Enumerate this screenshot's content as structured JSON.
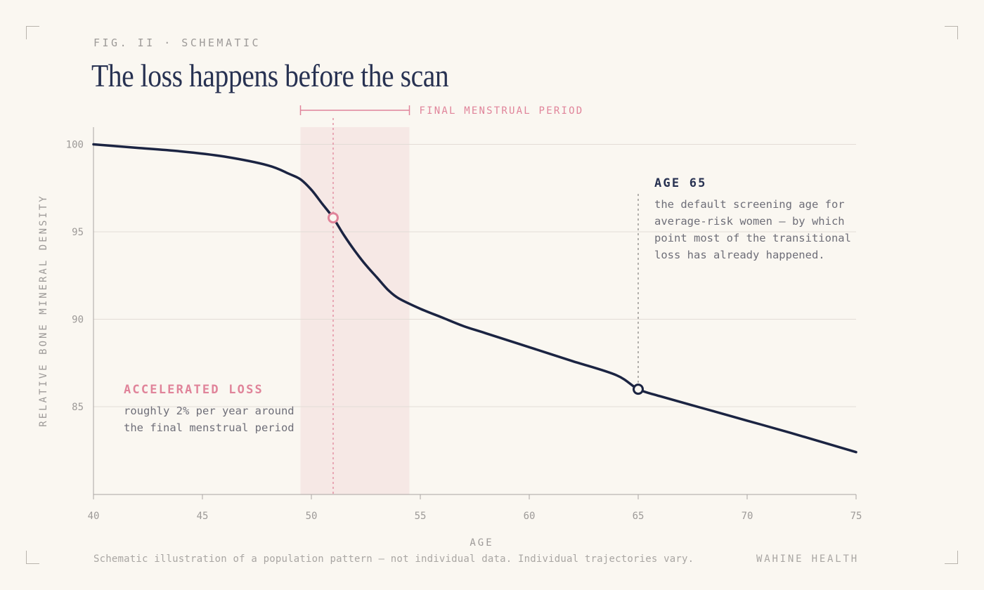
{
  "kicker": "FIG. II · SCHEMATIC",
  "title": "The loss happens before the scan",
  "footer": {
    "note": "Schematic illustration of a population pattern — not individual data. Individual trajectories vary.",
    "brand": "WAHINE HEALTH"
  },
  "colors": {
    "background": "#faf7f1",
    "line": "#1b2442",
    "accent_pink": "#e0849a",
    "band": "#f6e8e5",
    "muted": "#9d9a98"
  },
  "chart_data": {
    "type": "line",
    "xlabel": "AGE",
    "ylabel": "RELATIVE BONE MINERAL DENSITY",
    "xlim": [
      40,
      75
    ],
    "ylim": [
      80,
      101
    ],
    "x_ticks": [
      "40",
      "45",
      "50",
      "55",
      "60",
      "65",
      "70",
      "75"
    ],
    "y_ticks": [
      "100",
      "95",
      "90",
      "85"
    ],
    "grid": "horizontal",
    "series": [
      {
        "x": [
          40,
          42,
          44,
          46,
          48,
          49,
          49.5,
          50,
          50.5,
          51,
          51.5,
          52,
          52.5,
          53,
          53.5,
          54,
          55,
          56,
          57,
          58,
          60,
          62,
          64,
          65,
          66,
          68,
          70,
          72,
          75
        ],
        "y": [
          100,
          99.8,
          99.6,
          99.3,
          98.8,
          98.3,
          98.0,
          97.4,
          96.6,
          95.8,
          94.8,
          93.9,
          93.1,
          92.4,
          91.7,
          91.2,
          90.6,
          90.1,
          89.6,
          89.2,
          88.4,
          87.6,
          86.8,
          86.0,
          85.6,
          84.9,
          84.2,
          83.5,
          82.4
        ]
      }
    ],
    "band": {
      "x_start": 49.5,
      "x_end": 54.5,
      "label": "FINAL MENSTRUAL PERIOD"
    },
    "markers": [
      {
        "x": 51,
        "y": 95.8,
        "style": "pink-ring"
      },
      {
        "x": 65,
        "y": 86,
        "style": "navy-ring"
      }
    ],
    "annotations": [
      {
        "id": "accelerated",
        "title": "ACCELERATED LOSS",
        "lines": [
          "roughly 2% per year around",
          "the final menstrual period"
        ]
      },
      {
        "id": "age65",
        "title": "AGE 65",
        "lines": [
          "the default screening age for",
          "average-risk women — by which",
          "point most of the transitional",
          "loss has already happened."
        ]
      }
    ]
  }
}
